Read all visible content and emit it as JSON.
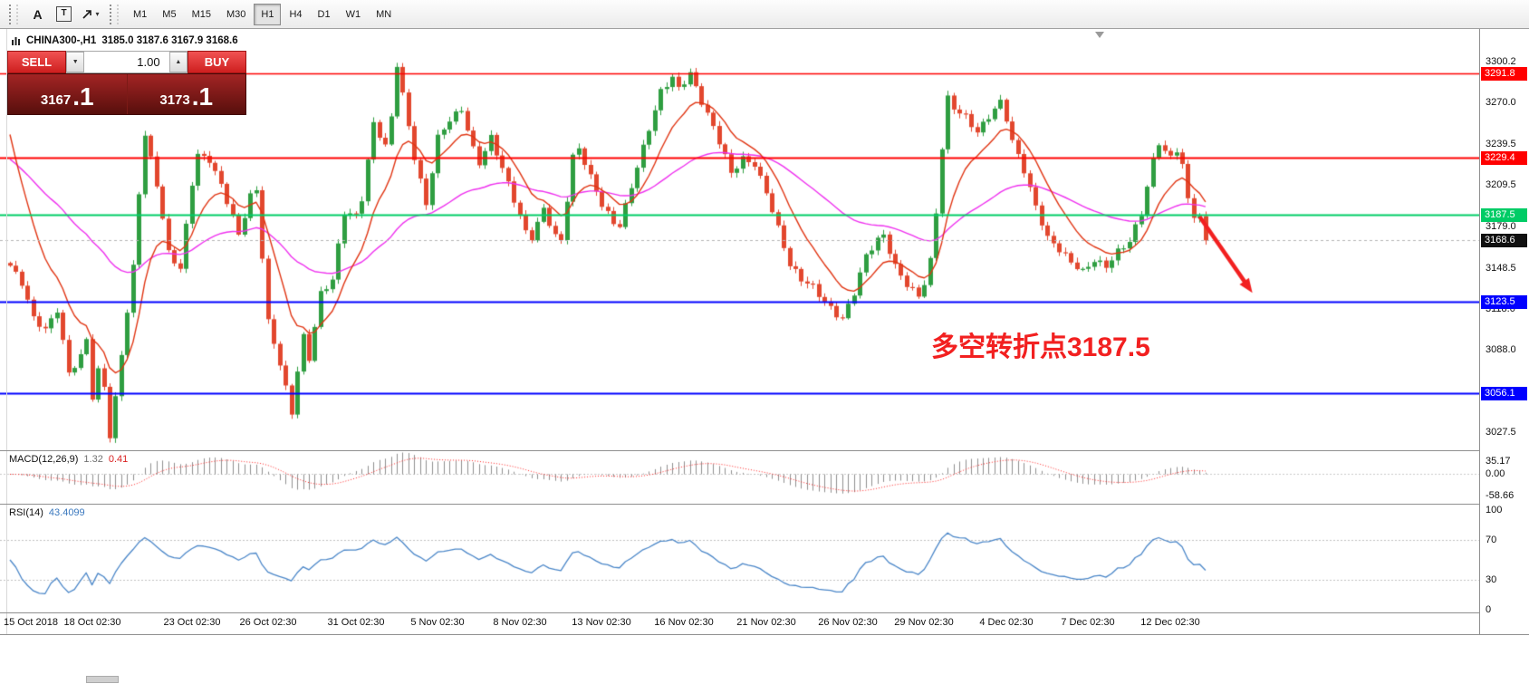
{
  "toolbar": {
    "tools": [
      {
        "glyph": "A",
        "name": "label-tool"
      },
      {
        "glyph": "T",
        "name": "text-tool"
      }
    ],
    "timeframes": [
      "M1",
      "M5",
      "M15",
      "M30",
      "H1",
      "H4",
      "D1",
      "W1",
      "MN"
    ],
    "active_timeframe": "H1"
  },
  "symbol_bar": {
    "symbol": "CHINA300-,H1",
    "ohlc": "3185.0 3187.6 3167.9 3168.6"
  },
  "trade_panel": {
    "sell_label": "SELL",
    "buy_label": "BUY",
    "volume": "1.00",
    "sell_price_main": "3167",
    "sell_price_pip": ".1",
    "buy_price_main": "3173",
    "buy_price_pip": ".1"
  },
  "annotation": {
    "text": "多空转折点3187.5"
  },
  "macd_panel": {
    "name": "MACD(12,26,9)",
    "value_main": "1.32",
    "value_signal": "0.41"
  },
  "rsi_panel": {
    "name": "RSI(14)",
    "value": "43.4099"
  },
  "chart_data": {
    "type": "candlestick",
    "symbol": "CHINA300-",
    "timeframe": "H1",
    "current_ohlc": {
      "open": 3185.0,
      "high": 3187.6,
      "low": 3167.9,
      "close": 3168.6
    },
    "ylim": [
      3014.1,
      3321.6
    ],
    "price_ticks": [
      3300.2,
      3270.0,
      3239.5,
      3209.5,
      3179.0,
      3148.5,
      3118.0,
      3088.0,
      3027.5
    ],
    "levels": [
      {
        "price": 3291.8,
        "color": "#ff0000",
        "width": 1.4
      },
      {
        "price": 3229.4,
        "color": "#ff0000",
        "width": 2
      },
      {
        "price": 3187.5,
        "color": "#00cc66",
        "width": 2
      },
      {
        "price": 3123.5,
        "color": "#0000ff",
        "width": 2
      },
      {
        "price": 3056.1,
        "color": "#0000ff",
        "width": 2
      }
    ],
    "current_price": 3168.6,
    "up_color": "#2f9e41",
    "down_color": "#e2472e",
    "ma_fast": {
      "period": 10,
      "color": "#e03412",
      "init": 3268
    },
    "ma_slow": {
      "period": 45,
      "color": "#ee30ee",
      "init": 3232
    },
    "candle_count": 205,
    "price_path": [
      [
        0,
        3150
      ],
      [
        2,
        3136
      ],
      [
        4,
        3110
      ],
      [
        6,
        3103
      ],
      [
        8,
        3119
      ],
      [
        10,
        3072
      ],
      [
        12,
        3083
      ],
      [
        13,
        3095
      ],
      [
        14,
        3052
      ],
      [
        15,
        3071
      ],
      [
        16,
        3060
      ],
      [
        17,
        3024
      ],
      [
        18,
        3052
      ],
      [
        19,
        3086
      ],
      [
        21,
        3150
      ],
      [
        22,
        3205
      ],
      [
        23,
        3247
      ],
      [
        25,
        3209
      ],
      [
        27,
        3158
      ],
      [
        29,
        3147
      ],
      [
        31,
        3212
      ],
      [
        32,
        3233
      ],
      [
        34,
        3229
      ],
      [
        36,
        3209
      ],
      [
        38,
        3184
      ],
      [
        39,
        3171
      ],
      [
        41,
        3201
      ],
      [
        42,
        3206
      ],
      [
        43,
        3158
      ],
      [
        44,
        3110
      ],
      [
        46,
        3079
      ],
      [
        48,
        3041
      ],
      [
        49,
        3072
      ],
      [
        50,
        3096
      ],
      [
        51,
        3080
      ],
      [
        53,
        3129
      ],
      [
        55,
        3141
      ],
      [
        57,
        3191
      ],
      [
        59,
        3187
      ],
      [
        60,
        3199
      ],
      [
        62,
        3253
      ],
      [
        64,
        3237
      ],
      [
        65,
        3259
      ],
      [
        66,
        3299
      ],
      [
        67,
        3277
      ],
      [
        69,
        3231
      ],
      [
        71,
        3195
      ],
      [
        73,
        3243
      ],
      [
        75,
        3256
      ],
      [
        77,
        3265
      ],
      [
        79,
        3237
      ],
      [
        80,
        3227
      ],
      [
        82,
        3245
      ],
      [
        84,
        3221
      ],
      [
        86,
        3197
      ],
      [
        88,
        3174
      ],
      [
        89,
        3171
      ],
      [
        91,
        3193
      ],
      [
        93,
        3173
      ],
      [
        94,
        3169
      ],
      [
        96,
        3229
      ],
      [
        97,
        3235
      ],
      [
        99,
        3214
      ],
      [
        101,
        3195
      ],
      [
        103,
        3183
      ],
      [
        104,
        3181
      ],
      [
        106,
        3209
      ],
      [
        108,
        3236
      ],
      [
        110,
        3263
      ],
      [
        111,
        3277
      ],
      [
        113,
        3289
      ],
      [
        114,
        3281
      ],
      [
        116,
        3293
      ],
      [
        118,
        3271
      ],
      [
        120,
        3251
      ],
      [
        122,
        3229
      ],
      [
        123,
        3217
      ],
      [
        125,
        3229
      ],
      [
        127,
        3226
      ],
      [
        129,
        3205
      ],
      [
        131,
        3177
      ],
      [
        133,
        3149
      ],
      [
        135,
        3139
      ],
      [
        137,
        3135
      ],
      [
        139,
        3125
      ],
      [
        141,
        3115
      ],
      [
        142,
        3111
      ],
      [
        144,
        3129
      ],
      [
        146,
        3156
      ],
      [
        148,
        3169
      ],
      [
        149,
        3173
      ],
      [
        151,
        3151
      ],
      [
        153,
        3137
      ],
      [
        155,
        3127
      ],
      [
        156,
        3136
      ],
      [
        157,
        3152
      ],
      [
        158,
        3188
      ],
      [
        159,
        3236
      ],
      [
        160,
        3273
      ],
      [
        161,
        3267
      ],
      [
        163,
        3261
      ],
      [
        165,
        3249
      ],
      [
        167,
        3259
      ],
      [
        169,
        3269
      ],
      [
        170,
        3257
      ],
      [
        171,
        3241
      ],
      [
        173,
        3221
      ],
      [
        175,
        3195
      ],
      [
        177,
        3171
      ],
      [
        179,
        3161
      ],
      [
        181,
        3151
      ],
      [
        183,
        3145
      ],
      [
        185,
        3155
      ],
      [
        187,
        3151
      ],
      [
        189,
        3161
      ],
      [
        191,
        3167
      ],
      [
        193,
        3187
      ],
      [
        194,
        3207
      ],
      [
        195,
        3227
      ],
      [
        196,
        3241
      ],
      [
        197,
        3235
      ],
      [
        198,
        3231
      ],
      [
        199,
        3237
      ],
      [
        200,
        3225
      ],
      [
        201,
        3199
      ],
      [
        202,
        3187
      ],
      [
        203,
        3184
      ],
      [
        204,
        3168.6
      ]
    ],
    "macd": {
      "params": [
        12,
        26,
        9
      ],
      "current_main": 1.32,
      "current_signal": 0.41,
      "axis": [
        35.17,
        0.0,
        -58.66
      ],
      "hist_color": "#8f8f8f",
      "signal_color": "#ff2020"
    },
    "rsi": {
      "period": 14,
      "current": 43.4099,
      "axis": [
        100,
        70,
        30,
        0
      ],
      "levels": [
        70,
        30
      ],
      "color": "#4a86c8"
    },
    "time_labels": [
      {
        "label": "15 Oct 2018",
        "i": 0
      },
      {
        "label": "18 Oct 02:30",
        "i": 14
      },
      {
        "label": "23 Oct 02:30",
        "i": 31
      },
      {
        "label": "26 Oct 02:30",
        "i": 44
      },
      {
        "label": "31 Oct 02:30",
        "i": 59
      },
      {
        "label": "5 Nov 02:30",
        "i": 73
      },
      {
        "label": "8 Nov 02:30",
        "i": 87
      },
      {
        "label": "13 Nov 02:30",
        "i": 101
      },
      {
        "label": "16 Nov 02:30",
        "i": 115
      },
      {
        "label": "21 Nov 02:30",
        "i": 129
      },
      {
        "label": "26 Nov 02:30",
        "i": 143
      },
      {
        "label": "29 Nov 02:30",
        "i": 156
      },
      {
        "label": "4 Dec 02:30",
        "i": 170
      },
      {
        "label": "7 Dec 02:30",
        "i": 184
      },
      {
        "label": "12 Dec 02:30",
        "i": 198
      }
    ],
    "trend_arrow": {
      "from_i": 203,
      "from_price": 3186,
      "to_i": 212,
      "to_price": 3130,
      "color": "#f22020"
    }
  }
}
